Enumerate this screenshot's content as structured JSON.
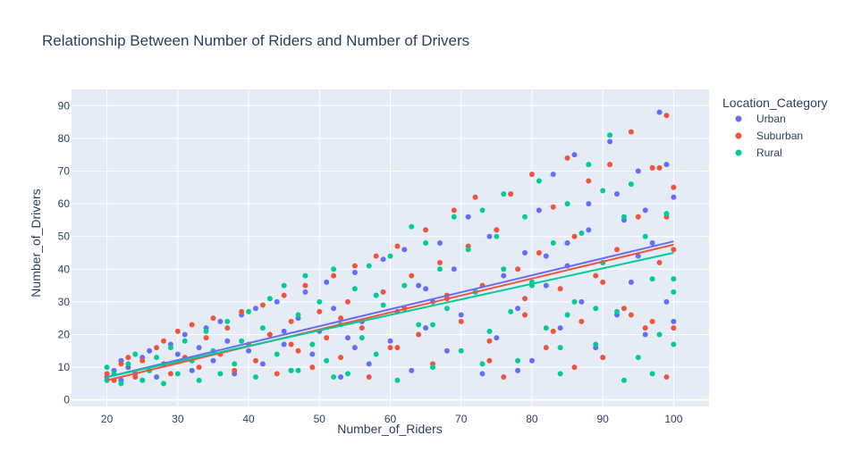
{
  "chart_data": {
    "type": "scatter",
    "title": "Relationship Between Number of Riders and Number of Drivers",
    "xlabel": "Number_of_Riders",
    "ylabel": "Number_of_Drivers",
    "xlim": [
      15,
      105
    ],
    "ylim": [
      -2,
      95
    ],
    "xticks": [
      20,
      30,
      40,
      50,
      60,
      70,
      80,
      90,
      100
    ],
    "yticks": [
      0,
      10,
      20,
      30,
      40,
      50,
      60,
      70,
      80,
      90
    ],
    "grid": true,
    "legend": {
      "title": "Location_Category",
      "placement": "right"
    },
    "series": [
      {
        "name": "Urban",
        "color": "#636efa",
        "trendline": {
          "x": [
            20,
            100
          ],
          "y": [
            7,
            48.5
          ]
        },
        "points": [
          [
            20,
            7
          ],
          [
            21,
            9
          ],
          [
            22,
            12
          ],
          [
            22,
            6
          ],
          [
            23,
            10
          ],
          [
            24,
            8
          ],
          [
            25,
            13
          ],
          [
            26,
            15
          ],
          [
            27,
            7
          ],
          [
            28,
            11
          ],
          [
            29,
            17
          ],
          [
            30,
            14
          ],
          [
            31,
            20
          ],
          [
            32,
            9
          ],
          [
            33,
            16
          ],
          [
            34,
            22
          ],
          [
            35,
            12
          ],
          [
            36,
            24
          ],
          [
            37,
            18
          ],
          [
            38,
            8
          ],
          [
            39,
            26
          ],
          [
            40,
            15
          ],
          [
            41,
            28
          ],
          [
            42,
            11
          ],
          [
            43,
            20
          ],
          [
            44,
            30
          ],
          [
            45,
            17
          ],
          [
            46,
            9
          ],
          [
            47,
            25
          ],
          [
            48,
            33
          ],
          [
            49,
            14
          ],
          [
            50,
            21
          ],
          [
            51,
            36
          ],
          [
            52,
            28
          ],
          [
            53,
            7
          ],
          [
            54,
            19
          ],
          [
            55,
            39
          ],
          [
            56,
            24
          ],
          [
            57,
            11
          ],
          [
            58,
            32
          ],
          [
            59,
            43
          ],
          [
            60,
            18
          ],
          [
            61,
            27
          ],
          [
            62,
            46
          ],
          [
            63,
            9
          ],
          [
            64,
            35
          ],
          [
            65,
            22
          ],
          [
            66,
            30
          ],
          [
            67,
            48
          ],
          [
            68,
            15
          ],
          [
            69,
            40
          ],
          [
            70,
            26
          ],
          [
            71,
            56
          ],
          [
            72,
            33
          ],
          [
            73,
            8
          ],
          [
            74,
            50
          ],
          [
            75,
            19
          ],
          [
            76,
            38
          ],
          [
            77,
            63
          ],
          [
            78,
            28
          ],
          [
            79,
            45
          ],
          [
            80,
            12
          ],
          [
            81,
            58
          ],
          [
            82,
            35
          ],
          [
            83,
            69
          ],
          [
            84,
            22
          ],
          [
            85,
            48
          ],
          [
            86,
            75
          ],
          [
            87,
            30
          ],
          [
            88,
            60
          ],
          [
            89,
            16
          ],
          [
            90,
            42
          ],
          [
            91,
            79
          ],
          [
            92,
            26
          ],
          [
            93,
            55
          ],
          [
            94,
            36
          ],
          [
            95,
            70
          ],
          [
            96,
            20
          ],
          [
            97,
            48
          ],
          [
            98,
            88
          ],
          [
            99,
            30
          ],
          [
            100,
            62
          ],
          [
            100,
            24
          ],
          [
            99,
            72
          ],
          [
            95,
            44
          ],
          [
            85,
            41
          ],
          [
            75,
            52
          ],
          [
            65,
            34
          ],
          [
            55,
            16
          ],
          [
            45,
            21
          ],
          [
            88,
            52
          ],
          [
            92,
            63
          ],
          [
            78,
            9
          ],
          [
            82,
            44
          ],
          [
            96,
            58
          ]
        ]
      },
      {
        "name": "Suburban",
        "color": "#ef553b",
        "trendline": {
          "x": [
            20,
            100
          ],
          "y": [
            6,
            47.5
          ]
        },
        "points": [
          [
            20,
            8
          ],
          [
            21,
            6
          ],
          [
            22,
            11
          ],
          [
            23,
            13
          ],
          [
            24,
            7
          ],
          [
            25,
            12
          ],
          [
            26,
            9
          ],
          [
            27,
            16
          ],
          [
            28,
            18
          ],
          [
            29,
            8
          ],
          [
            30,
            21
          ],
          [
            31,
            13
          ],
          [
            32,
            23
          ],
          [
            33,
            10
          ],
          [
            34,
            19
          ],
          [
            35,
            25
          ],
          [
            36,
            14
          ],
          [
            37,
            22
          ],
          [
            38,
            9
          ],
          [
            39,
            27
          ],
          [
            40,
            17
          ],
          [
            41,
            12
          ],
          [
            42,
            29
          ],
          [
            43,
            20
          ],
          [
            44,
            8
          ],
          [
            45,
            32
          ],
          [
            46,
            24
          ],
          [
            47,
            15
          ],
          [
            48,
            35
          ],
          [
            49,
            10
          ],
          [
            50,
            27
          ],
          [
            51,
            19
          ],
          [
            52,
            38
          ],
          [
            53,
            13
          ],
          [
            54,
            30
          ],
          [
            55,
            41
          ],
          [
            56,
            22
          ],
          [
            57,
            7
          ],
          [
            58,
            44
          ],
          [
            59,
            33
          ],
          [
            60,
            16
          ],
          [
            61,
            47
          ],
          [
            62,
            28
          ],
          [
            63,
            38
          ],
          [
            64,
            20
          ],
          [
            65,
            52
          ],
          [
            66,
            11
          ],
          [
            67,
            42
          ],
          [
            68,
            31
          ],
          [
            69,
            58
          ],
          [
            70,
            24
          ],
          [
            71,
            47
          ],
          [
            72,
            62
          ],
          [
            73,
            35
          ],
          [
            74,
            18
          ],
          [
            75,
            52
          ],
          [
            76,
            7
          ],
          [
            77,
            63
          ],
          [
            78,
            40
          ],
          [
            79,
            26
          ],
          [
            80,
            69
          ],
          [
            81,
            45
          ],
          [
            82,
            16
          ],
          [
            83,
            59
          ],
          [
            84,
            34
          ],
          [
            85,
            74
          ],
          [
            86,
            50
          ],
          [
            87,
            24
          ],
          [
            88,
            67
          ],
          [
            89,
            38
          ],
          [
            90,
            13
          ],
          [
            91,
            72
          ],
          [
            92,
            46
          ],
          [
            93,
            28
          ],
          [
            94,
            82
          ],
          [
            95,
            56
          ],
          [
            96,
            22
          ],
          [
            97,
            71
          ],
          [
            98,
            42
          ],
          [
            99,
            87
          ],
          [
            100,
            65
          ],
          [
            100,
            46
          ],
          [
            100,
            22
          ],
          [
            99,
            56
          ],
          [
            97,
            24
          ],
          [
            94,
            26
          ],
          [
            90,
            36
          ],
          [
            86,
            10
          ],
          [
            83,
            21
          ],
          [
            79,
            31
          ],
          [
            74,
            12
          ],
          [
            68,
            32
          ],
          [
            61,
            16
          ],
          [
            53,
            25
          ],
          [
            46,
            17
          ],
          [
            99,
            7
          ],
          [
            98,
            71
          ]
        ]
      },
      {
        "name": "Rural",
        "color": "#00cc96",
        "trendline": {
          "x": [
            20,
            100
          ],
          "y": [
            7,
            45
          ]
        },
        "points": [
          [
            20,
            10
          ],
          [
            20,
            6
          ],
          [
            21,
            8
          ],
          [
            22,
            5
          ],
          [
            23,
            11
          ],
          [
            24,
            14
          ],
          [
            25,
            6
          ],
          [
            26,
            9
          ],
          [
            27,
            13
          ],
          [
            28,
            5
          ],
          [
            29,
            16
          ],
          [
            30,
            8
          ],
          [
            31,
            18
          ],
          [
            32,
            12
          ],
          [
            33,
            6
          ],
          [
            34,
            21
          ],
          [
            35,
            15
          ],
          [
            36,
            8
          ],
          [
            37,
            24
          ],
          [
            38,
            11
          ],
          [
            39,
            18
          ],
          [
            40,
            27
          ],
          [
            41,
            7
          ],
          [
            42,
            22
          ],
          [
            43,
            31
          ],
          [
            44,
            14
          ],
          [
            45,
            35
          ],
          [
            46,
            9
          ],
          [
            47,
            26
          ],
          [
            48,
            38
          ],
          [
            49,
            17
          ],
          [
            50,
            30
          ],
          [
            51,
            12
          ],
          [
            52,
            40
          ],
          [
            53,
            23
          ],
          [
            54,
            8
          ],
          [
            55,
            34
          ],
          [
            56,
            19
          ],
          [
            57,
            41
          ],
          [
            58,
            14
          ],
          [
            59,
            29
          ],
          [
            60,
            44
          ],
          [
            61,
            6
          ],
          [
            62,
            35
          ],
          [
            63,
            53
          ],
          [
            64,
            23
          ],
          [
            65,
            48
          ],
          [
            66,
            10
          ],
          [
            67,
            40
          ],
          [
            68,
            28
          ],
          [
            69,
            56
          ],
          [
            70,
            15
          ],
          [
            71,
            46
          ],
          [
            72,
            33
          ],
          [
            73,
            58
          ],
          [
            74,
            21
          ],
          [
            75,
            50
          ],
          [
            76,
            63
          ],
          [
            77,
            27
          ],
          [
            78,
            12
          ],
          [
            79,
            56
          ],
          [
            80,
            36
          ],
          [
            81,
            67
          ],
          [
            82,
            22
          ],
          [
            83,
            48
          ],
          [
            84,
            8
          ],
          [
            85,
            60
          ],
          [
            86,
            30
          ],
          [
            87,
            51
          ],
          [
            88,
            72
          ],
          [
            89,
            17
          ],
          [
            90,
            42
          ],
          [
            91,
            81
          ],
          [
            92,
            27
          ],
          [
            93,
            56
          ],
          [
            94,
            66
          ],
          [
            95,
            13
          ],
          [
            96,
            50
          ],
          [
            97,
            37
          ],
          [
            98,
            20
          ],
          [
            99,
            57
          ],
          [
            100,
            33
          ],
          [
            100,
            17
          ],
          [
            100,
            37
          ],
          [
            97,
            8
          ],
          [
            93,
            6
          ],
          [
            89,
            28
          ],
          [
            85,
            26
          ],
          [
            80,
            35
          ],
          [
            73,
            11
          ],
          [
            66,
            23
          ],
          [
            58,
            32
          ],
          [
            52,
            7
          ],
          [
            47,
            9
          ],
          [
            76,
            40
          ],
          [
            90,
            64
          ],
          [
            84,
            16
          ]
        ]
      }
    ]
  }
}
